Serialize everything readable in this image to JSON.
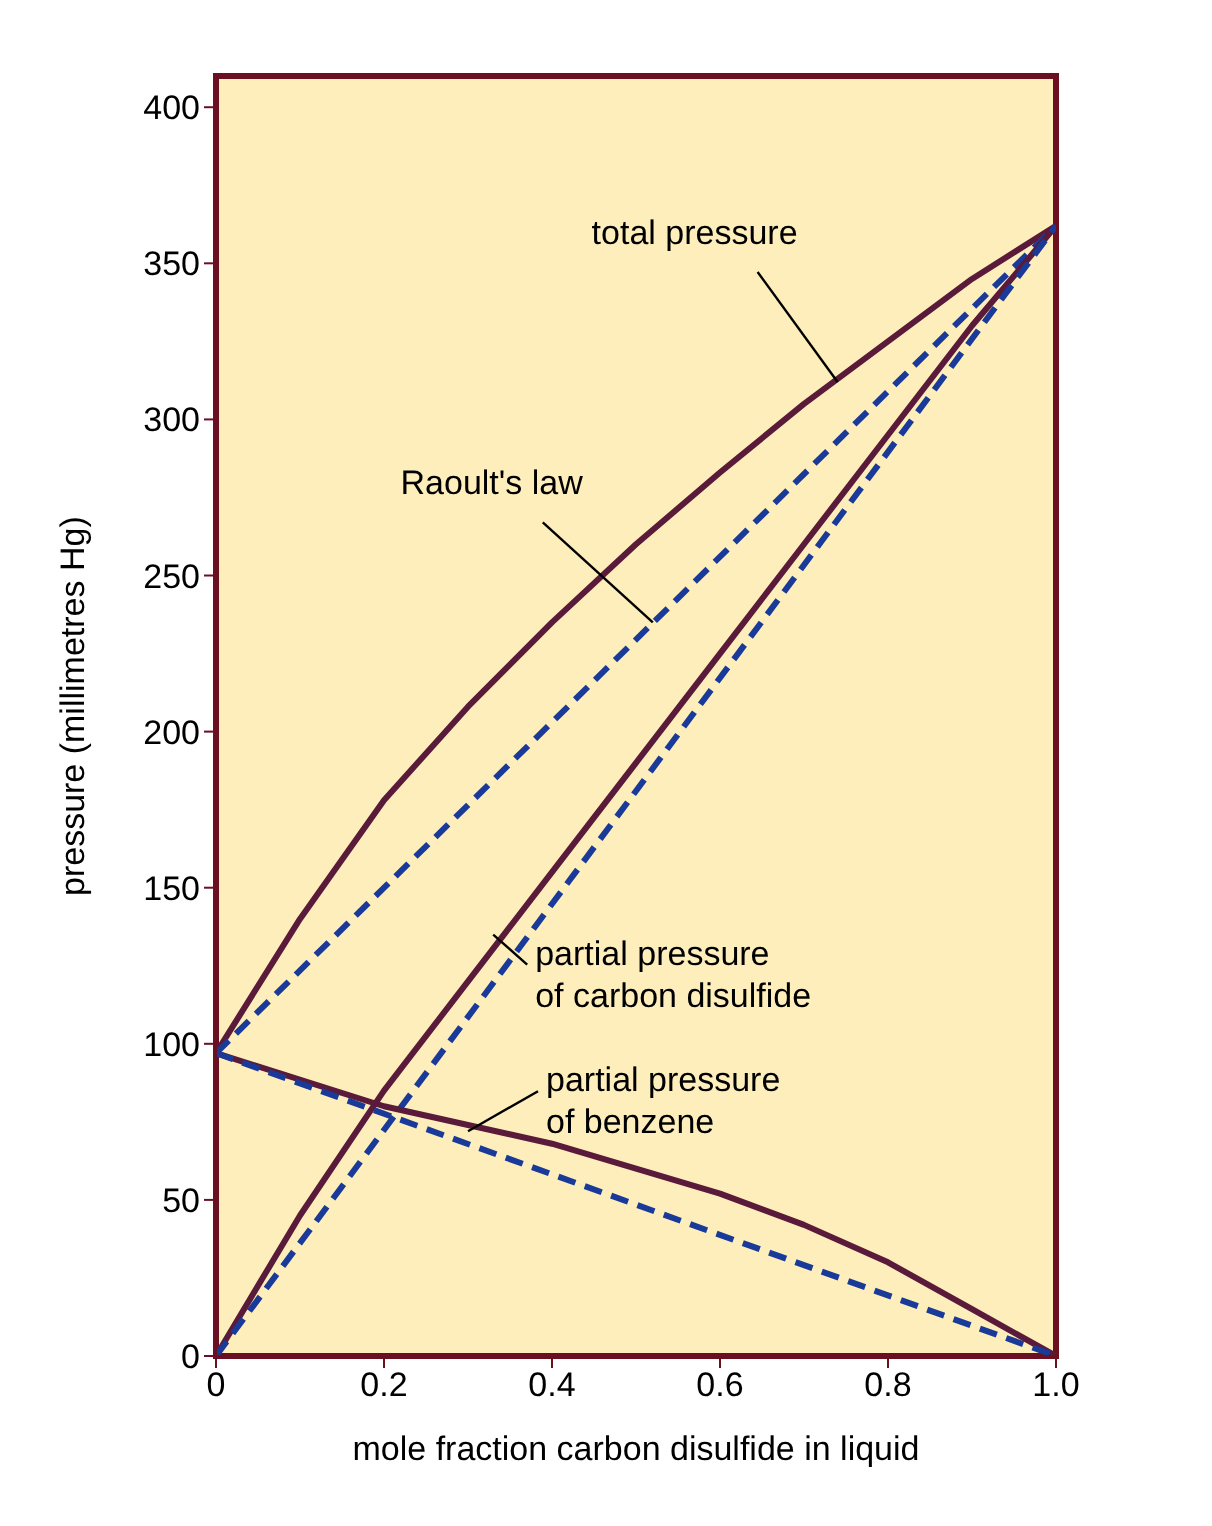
{
  "chart_data": {
    "type": "line",
    "xlabel": "mole fraction carbon disulfide in liquid",
    "ylabel": "pressure (millimetres Hg)",
    "xlim": [
      0,
      1
    ],
    "ylim": [
      0,
      410
    ],
    "xticks": [
      0,
      0.2,
      0.4,
      0.6,
      0.8,
      {
        "value": 1,
        "label": "1.0"
      }
    ],
    "yticks": [
      0,
      50,
      100,
      150,
      200,
      250,
      300,
      350,
      400
    ],
    "marker": "none",
    "series": [
      {
        "color": "#5a1a3a",
        "line_style": "solid",
        "x": [
          0,
          0.1,
          0.2,
          0.3,
          0.4,
          0.5,
          0.6,
          0.7,
          0.8,
          0.9,
          1
        ],
        "values": [
          97,
          140,
          178,
          208,
          235,
          260,
          283,
          305,
          325,
          345,
          362
        ]
      },
      {
        "color": "#1a3a9a",
        "line_style": "dashed",
        "x": [
          0,
          1
        ],
        "values": [
          97,
          362
        ]
      },
      {
        "color": "#5a1a3a",
        "line_style": "solid",
        "x": [
          0,
          0.1,
          0.2,
          0.3,
          0.4,
          0.5,
          0.6,
          0.7,
          0.8,
          0.9,
          1
        ],
        "values": [
          0,
          45,
          85,
          120,
          155,
          190,
          225,
          260,
          295,
          330,
          362
        ]
      },
      {
        "color": "#1a3a9a",
        "line_style": "dashed",
        "x": [
          0,
          1
        ],
        "values": [
          0,
          362
        ]
      },
      {
        "color": "#5a1a3a",
        "line_style": "solid",
        "x": [
          0,
          0.2,
          0.4,
          0.6,
          0.7,
          0.8,
          0.9,
          1
        ],
        "values": [
          97,
          80,
          68,
          52,
          42,
          30,
          15,
          0
        ]
      },
      {
        "color": "#1a3a9a",
        "line_style": "dashed",
        "x": [
          0,
          1
        ],
        "values": [
          97,
          0
        ]
      }
    ],
    "annotations": [
      {
        "text": "total pressure",
        "x": 0.74,
        "y": 312
      },
      {
        "text": "Raoult's law",
        "x": 0.52,
        "y": 235
      },
      {
        "text": "partial pressure\nof carbon disulfide",
        "x": 0.33,
        "y": 135
      },
      {
        "text": "partial pressure\nof benzene",
        "x": 0.3,
        "y": 72
      }
    ]
  }
}
